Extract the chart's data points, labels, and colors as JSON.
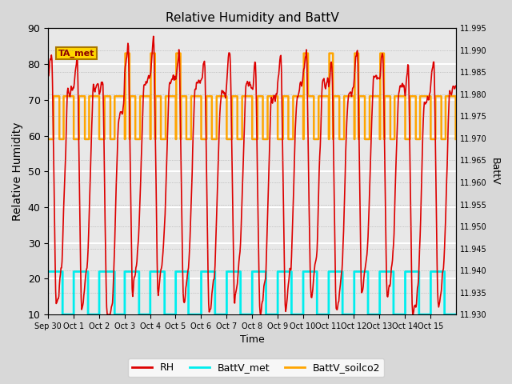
{
  "title": "Relative Humidity and BattV",
  "ylabel_left": "Relative Humidity",
  "ylabel_right": "BattV",
  "xlabel": "Time",
  "ylim_left": [
    10,
    90
  ],
  "ylim_right": [
    11.93,
    11.995
  ],
  "background_color": "#d8d8d8",
  "plot_bg_color": "#e8e8e8",
  "annotation_text": "TA_met",
  "annotation_box_color": "#ffd700",
  "annotation_text_color": "#8B0000",
  "x_tick_labels": [
    "Sep 30",
    "Oct 1",
    "Oct 2",
    "Oct 3",
    "Oct 4",
    "Oct 5",
    "Oct 6",
    "Oct 7",
    "Oct 8",
    "Oct 9",
    "Oct 10",
    "Oct 11",
    "Oct 12",
    "Oct 13",
    "Oct 14",
    "Oct 15"
  ],
  "rh_color": "#dd0000",
  "battv_met_color": "#00eeee",
  "battv_soilco2_color": "#ffa500",
  "legend_labels": [
    "RH",
    "BattV_met",
    "BattV_soilco2"
  ],
  "right_yticks": [
    11.93,
    11.935,
    11.94,
    11.945,
    11.95,
    11.955,
    11.96,
    11.965,
    11.97,
    11.975,
    11.98,
    11.985,
    11.99,
    11.995
  ],
  "left_yticks": [
    10,
    20,
    30,
    40,
    50,
    60,
    70,
    80,
    90
  ],
  "n_days": 16,
  "rh_high": 22,
  "rh_low": 10,
  "battv_soilco2_low": 59,
  "battv_soilco2_mid": 71,
  "battv_soilco2_high": 83
}
